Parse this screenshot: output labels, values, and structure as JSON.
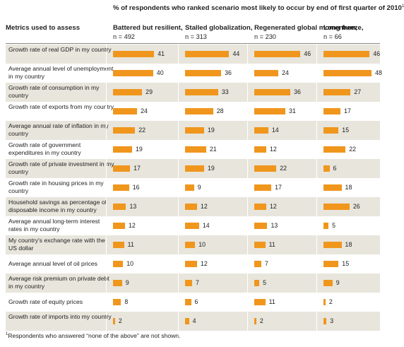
{
  "chart_data": {
    "type": "bar",
    "title": "% of respondents who ranked scenario most likely to occur by end of first quarter of 2010",
    "title_footnote_mark": "1",
    "row_header": "Metrics used to assess",
    "colors": {
      "bar": "#f0961c",
      "shaded_row": "#e8e5dc"
    },
    "series": [
      {
        "name": "Battered but resilient,",
        "n": "n = 492",
        "values": [
          41,
          40,
          29,
          24,
          22,
          19,
          17,
          16,
          13,
          12,
          11,
          10,
          9,
          8,
          2
        ]
      },
      {
        "name": "Stalled globalization,",
        "n": "n = 313",
        "values": [
          44,
          36,
          33,
          28,
          19,
          21,
          19,
          9,
          12,
          14,
          10,
          12,
          7,
          6,
          4
        ]
      },
      {
        "name": "Regenerated global momentum,",
        "n": "n = 230",
        "values": [
          46,
          24,
          36,
          31,
          14,
          12,
          22,
          17,
          12,
          13,
          11,
          7,
          5,
          11,
          2
        ]
      },
      {
        "name": "Long freeze,",
        "n": "n = 66",
        "values": [
          46,
          48,
          27,
          17,
          15,
          22,
          6,
          18,
          26,
          5,
          18,
          15,
          9,
          2,
          3
        ]
      }
    ],
    "categories": [
      "Growth rate of real GDP in my country",
      "Average annual level of unemployment in my country",
      "Growth rate of consumption in my country",
      "Growth rate of exports from my country",
      "Average annual rate of inflation in my country",
      "Growth rate of government expenditures in my country",
      "Growth rate of private investment in my country",
      "Growth rate in housing prices in my country",
      "Household savings as percentage of disposable income in my country",
      "Average annual long-term interest rates in my country",
      "My country's exchange rate with the US dollar",
      "Average annual level of oil prices",
      "Average risk premium on private debt in my country",
      "Growth rate of equity prices",
      "Growth rate of imports into my country"
    ]
  },
  "footnote": {
    "mark": "1",
    "text": "Respondents who answered “none of the above” are not shown."
  }
}
